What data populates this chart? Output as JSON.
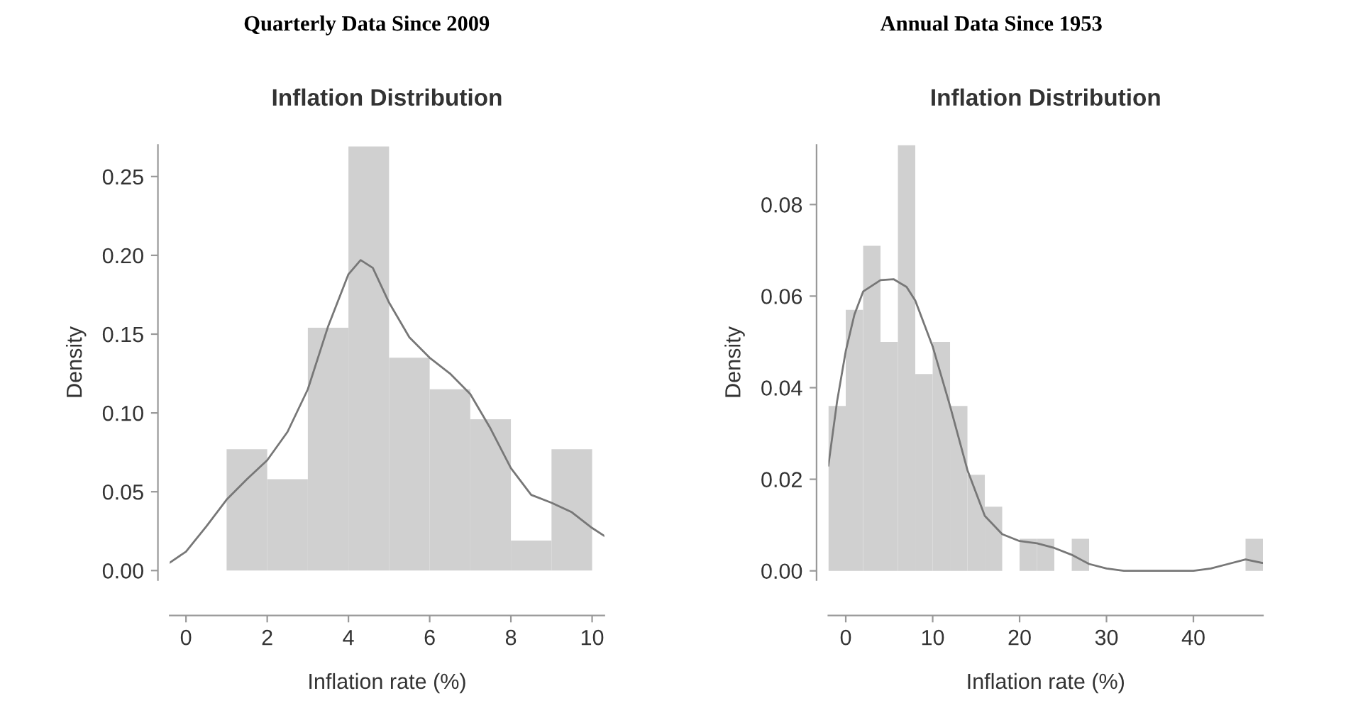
{
  "chart_data": [
    {
      "type": "histogram",
      "subtitle": "Quarterly Data Since 2009",
      "title": "Inflation Distribution",
      "xlabel": "Inflation rate (%)",
      "ylabel": "Density",
      "bins": [
        1,
        2,
        3,
        4,
        5,
        6,
        7,
        8,
        9,
        10
      ],
      "values": [
        0.077,
        0.058,
        0.154,
        0.269,
        0.135,
        0.115,
        0.096,
        0.019,
        0.077
      ],
      "color": "#d0d0d0",
      "series": [
        {
          "type": "line",
          "color": "#777777",
          "x": [
            -0.4,
            0,
            0.5,
            1,
            1.5,
            2,
            2.5,
            3,
            3.5,
            4,
            4.3,
            4.6,
            5,
            5.5,
            6,
            6.5,
            7,
            7.5,
            8,
            8.5,
            9,
            9.5,
            10,
            10.3
          ],
          "values": [
            0.005,
            0.012,
            0.028,
            0.045,
            0.058,
            0.07,
            0.088,
            0.115,
            0.155,
            0.188,
            0.197,
            0.192,
            0.17,
            0.148,
            0.135,
            0.125,
            0.112,
            0.09,
            0.065,
            0.048,
            0.043,
            0.037,
            0.027,
            0.022
          ]
        }
      ],
      "xlim": [
        -0.4,
        10.3
      ],
      "ylim": [
        -0.006,
        0.27
      ],
      "xticks": [
        0,
        2,
        4,
        6,
        8,
        10
      ],
      "yticks": [
        {
          "value": 0,
          "label": "0.00"
        },
        {
          "value": 0.05,
          "label": "0.05"
        },
        {
          "value": 0.1,
          "label": "0.10"
        },
        {
          "value": 0.15,
          "label": "0.15"
        },
        {
          "value": 0.2,
          "label": "0.20"
        },
        {
          "value": 0.25,
          "label": "0.25"
        }
      ],
      "grid": false,
      "legend": false
    },
    {
      "type": "histogram",
      "subtitle": "Annual Data Since 1953",
      "title": "Inflation Distribution",
      "xlabel": "Inflation rate (%)",
      "ylabel": "Density",
      "bins": [
        -2,
        0,
        2,
        4,
        6,
        8,
        10,
        12,
        14,
        16,
        18,
        20,
        22,
        24,
        26,
        28,
        30,
        32,
        34,
        36,
        38,
        40,
        42,
        44,
        46,
        48
      ],
      "values": [
        0.036,
        0.057,
        0.071,
        0.05,
        0.093,
        0.043,
        0.05,
        0.036,
        0.021,
        0.014,
        0,
        0.007,
        0.007,
        0,
        0.007,
        0,
        0,
        0,
        0,
        0,
        0,
        0,
        0,
        0,
        0.007
      ],
      "color": "#d0d0d0",
      "series": [
        {
          "type": "line",
          "color": "#777777",
          "x": [
            -2,
            -1,
            0,
            1,
            2,
            4,
            5.5,
            7,
            8,
            10,
            12,
            14,
            16,
            18,
            20,
            22,
            24,
            26,
            28,
            30,
            32,
            36,
            40,
            42,
            44,
            46,
            48
          ],
          "values": [
            0.023,
            0.037,
            0.048,
            0.056,
            0.061,
            0.0635,
            0.0637,
            0.062,
            0.059,
            0.049,
            0.036,
            0.022,
            0.012,
            0.008,
            0.0065,
            0.006,
            0.005,
            0.0035,
            0.0015,
            0.0005,
            0,
            0,
            0,
            0.0005,
            0.0015,
            0.0025,
            0.0017
          ]
        }
      ],
      "xlim": [
        -2,
        48
      ],
      "ylim": [
        -0.002,
        0.093
      ],
      "xticks": [
        0,
        10,
        20,
        30,
        40
      ],
      "yticks": [
        {
          "value": 0,
          "label": "0.00"
        },
        {
          "value": 0.02,
          "label": "0.02"
        },
        {
          "value": 0.04,
          "label": "0.04"
        },
        {
          "value": 0.06,
          "label": "0.06"
        },
        {
          "value": 0.08,
          "label": "0.08"
        }
      ],
      "grid": false,
      "legend": false
    }
  ]
}
